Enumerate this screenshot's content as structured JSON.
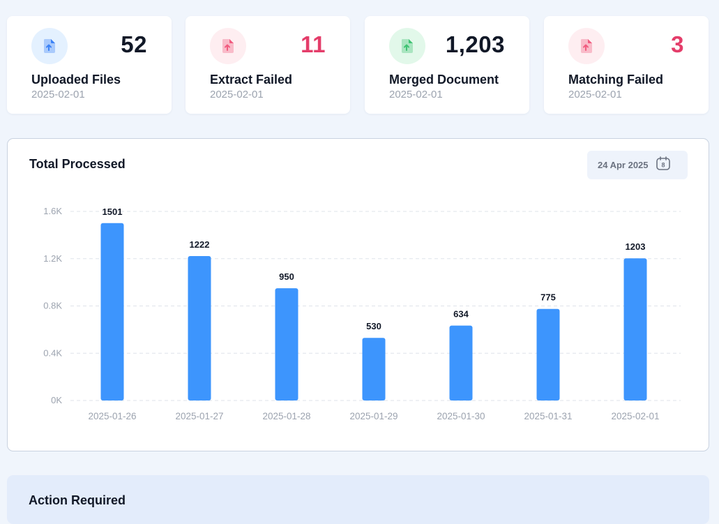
{
  "stats": [
    {
      "label": "Uploaded Files",
      "count": "52",
      "date": "2025-02-01",
      "icon": "file-upload-icon",
      "count_color": "#111827",
      "icon_bg": "#e4f1ff",
      "icon_fg": "#3b82f6"
    },
    {
      "label": "Extract Failed",
      "count": "11",
      "date": "2025-02-01",
      "icon": "file-upload-icon",
      "count_color": "#e43d6a",
      "icon_bg": "#feeef1",
      "icon_fg": "#f15b7f"
    },
    {
      "label": "Merged Document",
      "count": "1,203",
      "date": "2025-02-01",
      "icon": "file-upload-icon",
      "count_color": "#111827",
      "icon_bg": "#e2f8ea",
      "icon_fg": "#3fc373"
    },
    {
      "label": "Matching Failed",
      "count": "3",
      "date": "2025-02-01",
      "icon": "file-upload-icon",
      "count_color": "#e43d6a",
      "icon_bg": "#feeef1",
      "icon_fg": "#f15b7f"
    }
  ],
  "panel": {
    "title": "Total Processed",
    "date_label": "24 Apr 2025",
    "calendar_day": "8"
  },
  "chart_data": {
    "type": "bar",
    "title": "Total Processed",
    "categories": [
      "2025-01-26",
      "2025-01-27",
      "2025-01-28",
      "2025-01-29",
      "2025-01-30",
      "2025-01-31",
      "2025-02-01"
    ],
    "values": [
      1501,
      1222,
      950,
      530,
      634,
      775,
      1203
    ],
    "y_ticks": [
      "0K",
      "0.4K",
      "0.8K",
      "1.2K",
      "1.6K"
    ],
    "y_tick_values": [
      0,
      400,
      800,
      1200,
      1600
    ],
    "ylim": [
      0,
      1600
    ],
    "grid": true,
    "bar_color": "#3d95fd"
  },
  "action": {
    "title": "Action Required"
  }
}
